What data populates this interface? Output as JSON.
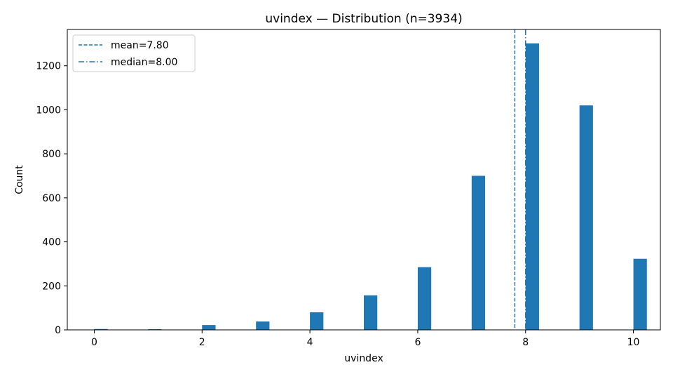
{
  "chart_data": {
    "type": "bar",
    "title": "uvindex — Distribution (n=3934)",
    "xlabel": "uvindex",
    "ylabel": "Count",
    "xlim": [
      -0.5,
      10.5
    ],
    "ylim": [
      0,
      1365
    ],
    "xticks": [
      0,
      2,
      4,
      6,
      8,
      10
    ],
    "yticks": [
      0,
      200,
      400,
      600,
      800,
      1000,
      1200
    ],
    "bin_width": 0.25,
    "bars": [
      {
        "x": 0,
        "value": 4
      },
      {
        "x": 1,
        "value": 3
      },
      {
        "x": 2,
        "value": 22
      },
      {
        "x": 3,
        "value": 38
      },
      {
        "x": 4,
        "value": 80
      },
      {
        "x": 5,
        "value": 157
      },
      {
        "x": 6,
        "value": 285
      },
      {
        "x": 7,
        "value": 700
      },
      {
        "x": 8,
        "value": 1302
      },
      {
        "x": 9,
        "value": 1020
      },
      {
        "x": 10,
        "value": 323
      }
    ],
    "bar_color": "#1f77b4",
    "lines": [
      {
        "name": "mean=7.80",
        "x": 7.8,
        "style": "dashed",
        "color": "#1f77b4"
      },
      {
        "name": "median=8.00",
        "x": 8.0,
        "style": "dashdot",
        "color": "#1f77b4"
      }
    ],
    "legend_position": "top-left",
    "grid": false
  }
}
